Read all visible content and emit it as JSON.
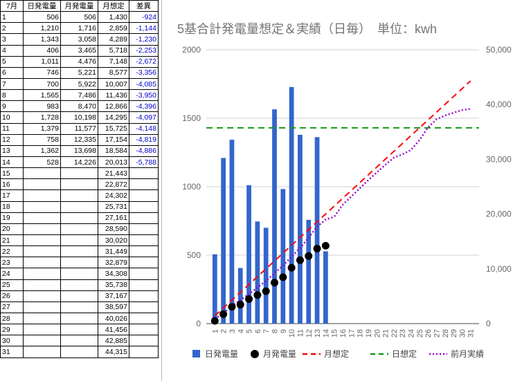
{
  "table": {
    "headers": [
      "7月",
      "日発電量",
      "月発電量",
      "月想定",
      "差異"
    ],
    "rows": [
      [
        "1",
        "506",
        "506",
        "1,430",
        "-924"
      ],
      [
        "2",
        "1,210",
        "1,716",
        "2,859",
        "-1,144"
      ],
      [
        "3",
        "1,343",
        "3,058",
        "4,289",
        "-1,230"
      ],
      [
        "4",
        "406",
        "3,465",
        "5,718",
        "-2,253"
      ],
      [
        "5",
        "1,011",
        "4,476",
        "7,148",
        "-2,672"
      ],
      [
        "6",
        "746",
        "5,221",
        "8,577",
        "-3,356"
      ],
      [
        "7",
        "700",
        "5,922",
        "10,007",
        "-4,085"
      ],
      [
        "8",
        "1,565",
        "7,486",
        "11,436",
        "-3,950"
      ],
      [
        "9",
        "983",
        "8,470",
        "12,866",
        "-4,396"
      ],
      [
        "10",
        "1,728",
        "10,198",
        "14,295",
        "-4,097"
      ],
      [
        "11",
        "1,379",
        "11,577",
        "15,725",
        "-4,148"
      ],
      [
        "12",
        "758",
        "12,335",
        "17,154",
        "-4,819"
      ],
      [
        "13",
        "1,362",
        "13,698",
        "18,584",
        "-4,886"
      ],
      [
        "14",
        "528",
        "14,226",
        "20,013",
        "-5,788"
      ],
      [
        "15",
        "",
        "",
        "21,443",
        ""
      ],
      [
        "16",
        "",
        "",
        "22,872",
        ""
      ],
      [
        "17",
        "",
        "",
        "24,302",
        ""
      ],
      [
        "18",
        "",
        "",
        "25,731",
        ""
      ],
      [
        "19",
        "",
        "",
        "27,161",
        ""
      ],
      [
        "20",
        "",
        "",
        "28,590",
        ""
      ],
      [
        "21",
        "",
        "",
        "30,020",
        ""
      ],
      [
        "22",
        "",
        "",
        "31,449",
        ""
      ],
      [
        "23",
        "",
        "",
        "32,879",
        ""
      ],
      [
        "24",
        "",
        "",
        "34,308",
        ""
      ],
      [
        "25",
        "",
        "",
        "35,738",
        ""
      ],
      [
        "26",
        "",
        "",
        "37,167",
        ""
      ],
      [
        "27",
        "",
        "",
        "38,597",
        ""
      ],
      [
        "28",
        "",
        "",
        "40,026",
        ""
      ],
      [
        "29",
        "",
        "",
        "41,456",
        ""
      ],
      [
        "30",
        "",
        "",
        "42,885",
        ""
      ],
      [
        "31",
        "",
        "",
        "44,315",
        ""
      ]
    ]
  },
  "chart_data": {
    "type": "bar",
    "title": "5基合計発電量想定＆実績（日毎）　単位：kwh",
    "categories": [
      "1",
      "2",
      "3",
      "4",
      "5",
      "6",
      "7",
      "8",
      "9",
      "10",
      "11",
      "12",
      "13",
      "14",
      "15",
      "16",
      "17",
      "18",
      "19",
      "20",
      "21",
      "22",
      "23",
      "24",
      "25",
      "26",
      "27",
      "28",
      "29",
      "30",
      "31"
    ],
    "left_axis": {
      "ylim": [
        0,
        2000
      ],
      "ticks": [
        0,
        500,
        1000,
        1500,
        2000
      ],
      "tick_labels": [
        "0",
        "500",
        "1000",
        "1500",
        "2000"
      ]
    },
    "right_axis": {
      "ylim": [
        0,
        50000
      ],
      "ticks": [
        0,
        10000,
        20000,
        30000,
        40000,
        50000
      ],
      "tick_labels": [
        "0",
        "10,000",
        "20,000",
        "30,000",
        "40,000",
        "50,000"
      ]
    },
    "grid": true,
    "legend_position": "bottom",
    "series": [
      {
        "name": "日発電量",
        "kind": "bar",
        "axis": "left",
        "color": "#3366cc",
        "values": [
          506,
          1210,
          1343,
          406,
          1011,
          746,
          700,
          1565,
          983,
          1728,
          1379,
          758,
          1362,
          528,
          null,
          null,
          null,
          null,
          null,
          null,
          null,
          null,
          null,
          null,
          null,
          null,
          null,
          null,
          null,
          null,
          null
        ]
      },
      {
        "name": "月発電量",
        "kind": "marker",
        "axis": "right",
        "color": "#000000",
        "values": [
          506,
          1716,
          3058,
          3465,
          4476,
          5221,
          5922,
          7486,
          8470,
          10198,
          11577,
          12335,
          13698,
          14226,
          null,
          null,
          null,
          null,
          null,
          null,
          null,
          null,
          null,
          null,
          null,
          null,
          null,
          null,
          null,
          null,
          null
        ]
      },
      {
        "name": "月想定",
        "kind": "dashed-line",
        "axis": "right",
        "color": "#ff0000",
        "values": [
          1430,
          2859,
          4289,
          5718,
          7148,
          8577,
          10007,
          11436,
          12866,
          14295,
          15725,
          17154,
          18584,
          20013,
          21443,
          22872,
          24302,
          25731,
          27161,
          28590,
          30020,
          31449,
          32879,
          34308,
          35738,
          37167,
          38597,
          40026,
          41456,
          42885,
          44315
        ]
      },
      {
        "name": "日想定",
        "kind": "dashed-line",
        "axis": "left",
        "color": "#119911",
        "values": [
          1430,
          1430,
          1430,
          1430,
          1430,
          1430,
          1430,
          1430,
          1430,
          1430,
          1430,
          1430,
          1430,
          1430,
          1430,
          1430,
          1430,
          1430,
          1430,
          1430,
          1430,
          1430,
          1430,
          1430,
          1430,
          1430,
          1430,
          1430,
          1430,
          1430,
          1430
        ]
      },
      {
        "name": "前月実績",
        "kind": "dotted-line",
        "axis": "right",
        "color": "#9900cc",
        "values": [
          800,
          1900,
          3200,
          4300,
          5400,
          6600,
          7800,
          9200,
          10600,
          12200,
          13800,
          15700,
          17700,
          19000,
          19500,
          21700,
          23200,
          24700,
          26200,
          27600,
          29000,
          30300,
          30900,
          31700,
          33500,
          35800,
          37300,
          38000,
          38500,
          39000,
          39200
        ]
      }
    ]
  }
}
